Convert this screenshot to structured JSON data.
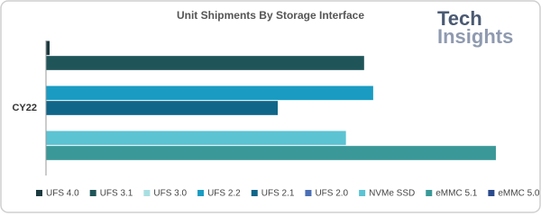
{
  "chart_data": {
    "type": "hbar",
    "title": "Unit Shipments By Storage Interface",
    "logo": [
      "Tech",
      "Insights"
    ],
    "categories": [
      "CY22"
    ],
    "series": [
      {
        "name": "UFS 4.0",
        "color": "#1b3a3f",
        "values": [
          0.8
        ]
      },
      {
        "name": "UFS 3.1",
        "color": "#1f5559",
        "values": [
          70
        ]
      },
      {
        "name": "UFS 3.0",
        "color": "#a9dfe2",
        "values": [
          0
        ]
      },
      {
        "name": "UFS 2.2",
        "color": "#1a9cc2",
        "values": [
          72
        ]
      },
      {
        "name": "UFS 2.1",
        "color": "#0f6688",
        "values": [
          51
        ]
      },
      {
        "name": "UFS 2.0",
        "color": "#4a6fb6",
        "values": [
          0
        ]
      },
      {
        "name": "NVMe SSD",
        "color": "#5cc3d3",
        "values": [
          66
        ]
      },
      {
        "name": "eMMC 5.1",
        "color": "#3a9898",
        "values": [
          99
        ]
      },
      {
        "name": "eMMC 5.0",
        "color": "#2b4a8c",
        "values": [
          0
        ]
      }
    ],
    "xlim": [
      0,
      100
    ],
    "legend": "bottom"
  }
}
